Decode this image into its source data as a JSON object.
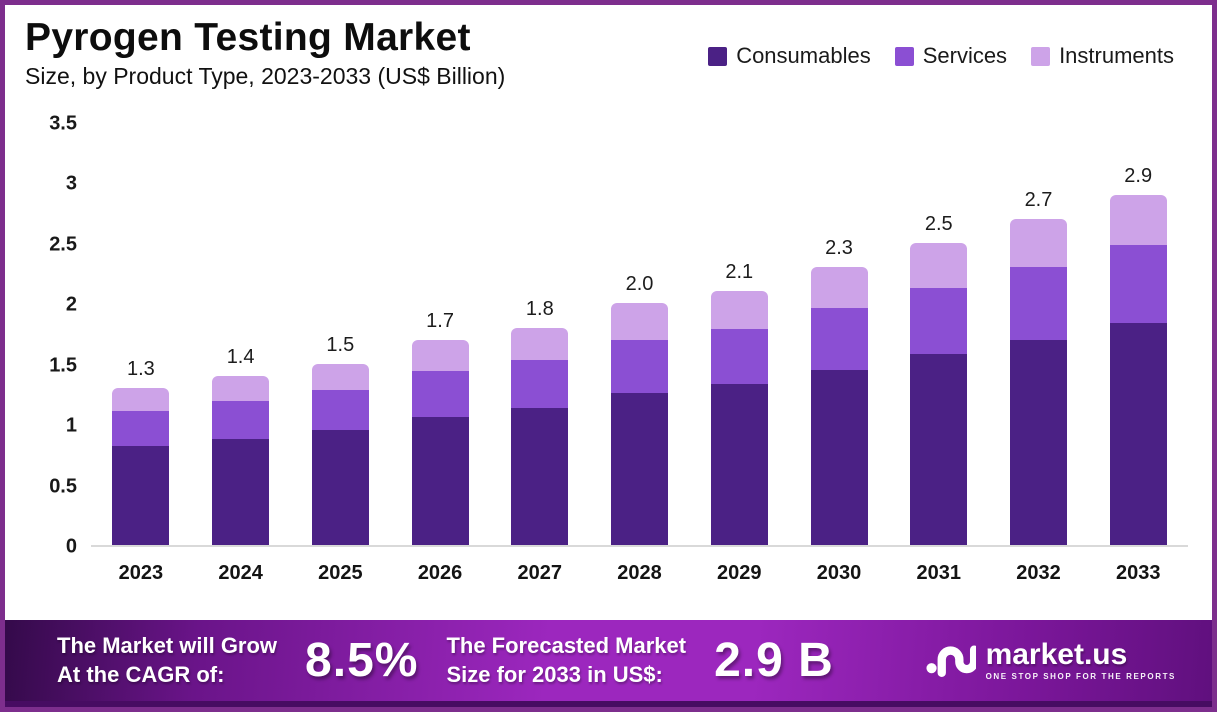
{
  "header": {
    "title": "Pyrogen Testing Market",
    "subtitle": "Size, by Product Type, 2023-2033 (US$ Billion)"
  },
  "chart_data": {
    "type": "bar",
    "stacked": true,
    "title": "Pyrogen Testing Market Size, by Product Type, 2023-2033 (US$ Billion)",
    "unit": "US$ Billion",
    "categories": [
      "2023",
      "2024",
      "2025",
      "2026",
      "2027",
      "2028",
      "2029",
      "2030",
      "2031",
      "2032",
      "2033"
    ],
    "series": [
      {
        "name": "Consumables",
        "color": "#4B2185",
        "values": [
          0.82,
          0.88,
          0.95,
          1.06,
          1.13,
          1.26,
          1.33,
          1.45,
          1.58,
          1.7,
          1.84
        ]
      },
      {
        "name": "Services",
        "color": "#8B4FD3",
        "values": [
          0.29,
          0.31,
          0.33,
          0.38,
          0.4,
          0.44,
          0.46,
          0.51,
          0.55,
          0.6,
          0.64
        ]
      },
      {
        "name": "Instruments",
        "color": "#CDA3E8",
        "values": [
          0.19,
          0.21,
          0.22,
          0.26,
          0.27,
          0.3,
          0.31,
          0.34,
          0.37,
          0.4,
          0.42
        ]
      }
    ],
    "totals": [
      "1.3",
      "1.4",
      "1.5",
      "1.7",
      "1.8",
      "2.0",
      "2.1",
      "2.3",
      "2.5",
      "2.7",
      "2.9"
    ],
    "xlabel": "",
    "ylabel": "",
    "ylim": [
      0,
      3.5
    ],
    "yticks": [
      "3.5",
      "3",
      "2.5",
      "2",
      "1.5",
      "1",
      "0.5",
      "0"
    ],
    "grid": false,
    "legend_position": "top-right"
  },
  "footer": {
    "cagr_lines": [
      "The Market will Grow",
      "At the CAGR of:"
    ],
    "cagr_value": "8.5%",
    "forecast_lines": [
      "The Forecasted Market",
      "Size for 2033 in US$:"
    ],
    "forecast_value": "2.9 B",
    "logo": {
      "name": "market.us",
      "tagline": "ONE STOP SHOP FOR THE REPORTS"
    }
  },
  "colors": {
    "frame_border": "#7D2E8D",
    "consumables": "#4B2185",
    "services": "#8B4FD3",
    "instruments": "#CDA3E8",
    "axis_line": "#D9D9D9",
    "footer_gradient_left": "#340A4A",
    "footer_gradient_mid": "#9C27BE",
    "footer_gradient_right": "#60107E"
  }
}
